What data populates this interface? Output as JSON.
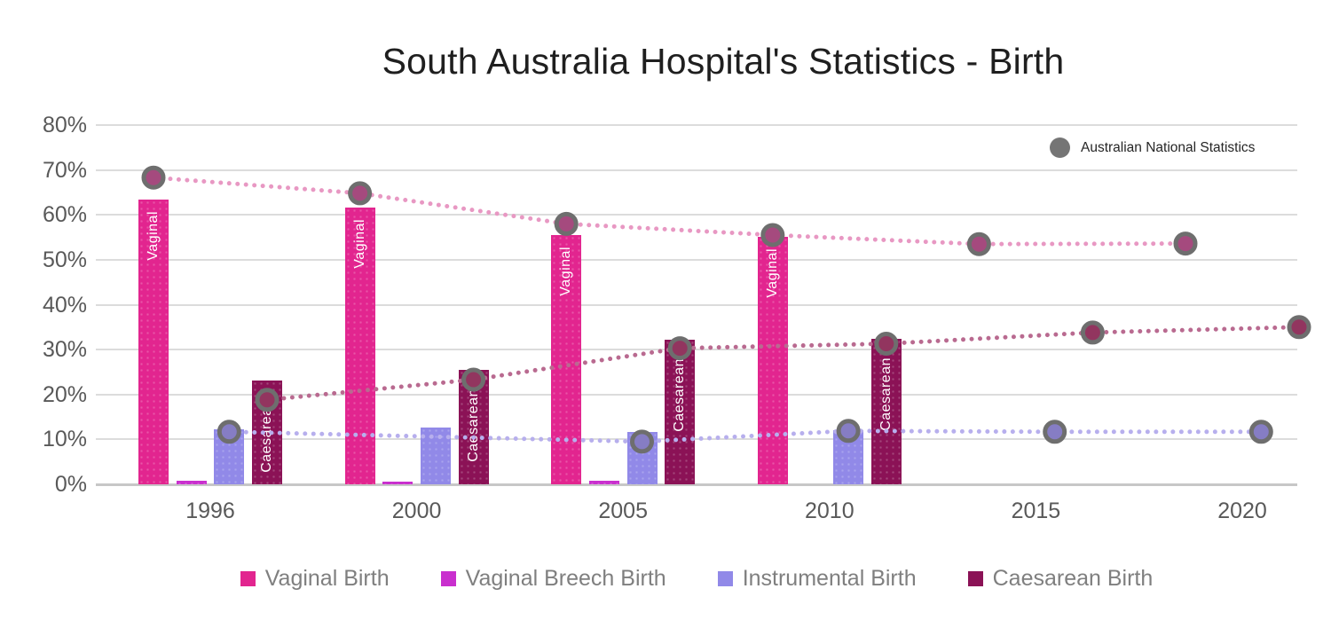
{
  "chart": {
    "title": "South Australia Hospital's Statistics - Birth",
    "national_legend_label": "Australian National Statistics"
  },
  "chart_data": {
    "type": "bar+line",
    "title": "South Australia Hospital's Statistics - Birth",
    "categories": [
      "1996",
      "2000",
      "2005",
      "2010",
      "2015",
      "2020"
    ],
    "y_axis": {
      "min": 0,
      "max": 80,
      "step": 10,
      "unit": "%",
      "tick_labels": [
        "0%",
        "10%",
        "20%",
        "30%",
        "40%",
        "50%",
        "60%",
        "70%",
        "80%"
      ]
    },
    "grid": true,
    "legend_position": "bottom",
    "bar_series": [
      {
        "name": "Vaginal Birth",
        "color": "#E2258F",
        "bar_label": "Vaginal",
        "values": [
          63.5,
          61.7,
          55.6,
          55.2,
          null,
          null
        ]
      },
      {
        "name": "Vaginal Breech Birth",
        "color": "#C92FCE",
        "bar_label": null,
        "values": [
          0.8,
          0.5,
          0.7,
          null,
          null,
          null
        ]
      },
      {
        "name": "Instrumental Birth",
        "color": "#9189E8",
        "bar_label": null,
        "values": [
          12.3,
          12.7,
          11.7,
          12.0,
          null,
          null
        ]
      },
      {
        "name": "Caesarean Birth",
        "color": "#8B1256",
        "bar_label": "Caesarean",
        "values": [
          23.2,
          25.4,
          32.2,
          32.4,
          null,
          null
        ]
      }
    ],
    "line_series": [
      {
        "name": "Australian National Statistics - Vaginal",
        "color": "#E898C3",
        "marker_fill": "#A54A7E",
        "marker_ring": "#6E6E6E",
        "align_with": "Vaginal Birth",
        "values": [
          68.3,
          64.8,
          58.0,
          55.5,
          53.5,
          53.6
        ]
      },
      {
        "name": "Australian National Statistics - Instrumental",
        "color": "#B7AFED",
        "marker_fill": "#867DC4",
        "marker_ring": "#6E6E6E",
        "align_with": "Instrumental Birth",
        "values": [
          11.7,
          null,
          9.5,
          11.9,
          11.7,
          11.7
        ]
      },
      {
        "name": "Australian National Statistics - Caesarean",
        "color": "#B96A90",
        "marker_fill": "#92355F",
        "marker_ring": "#6E6E6E",
        "align_with": "Caesarean Birth",
        "values": [
          18.8,
          23.3,
          30.3,
          31.3,
          33.8,
          35.0
        ]
      }
    ]
  }
}
